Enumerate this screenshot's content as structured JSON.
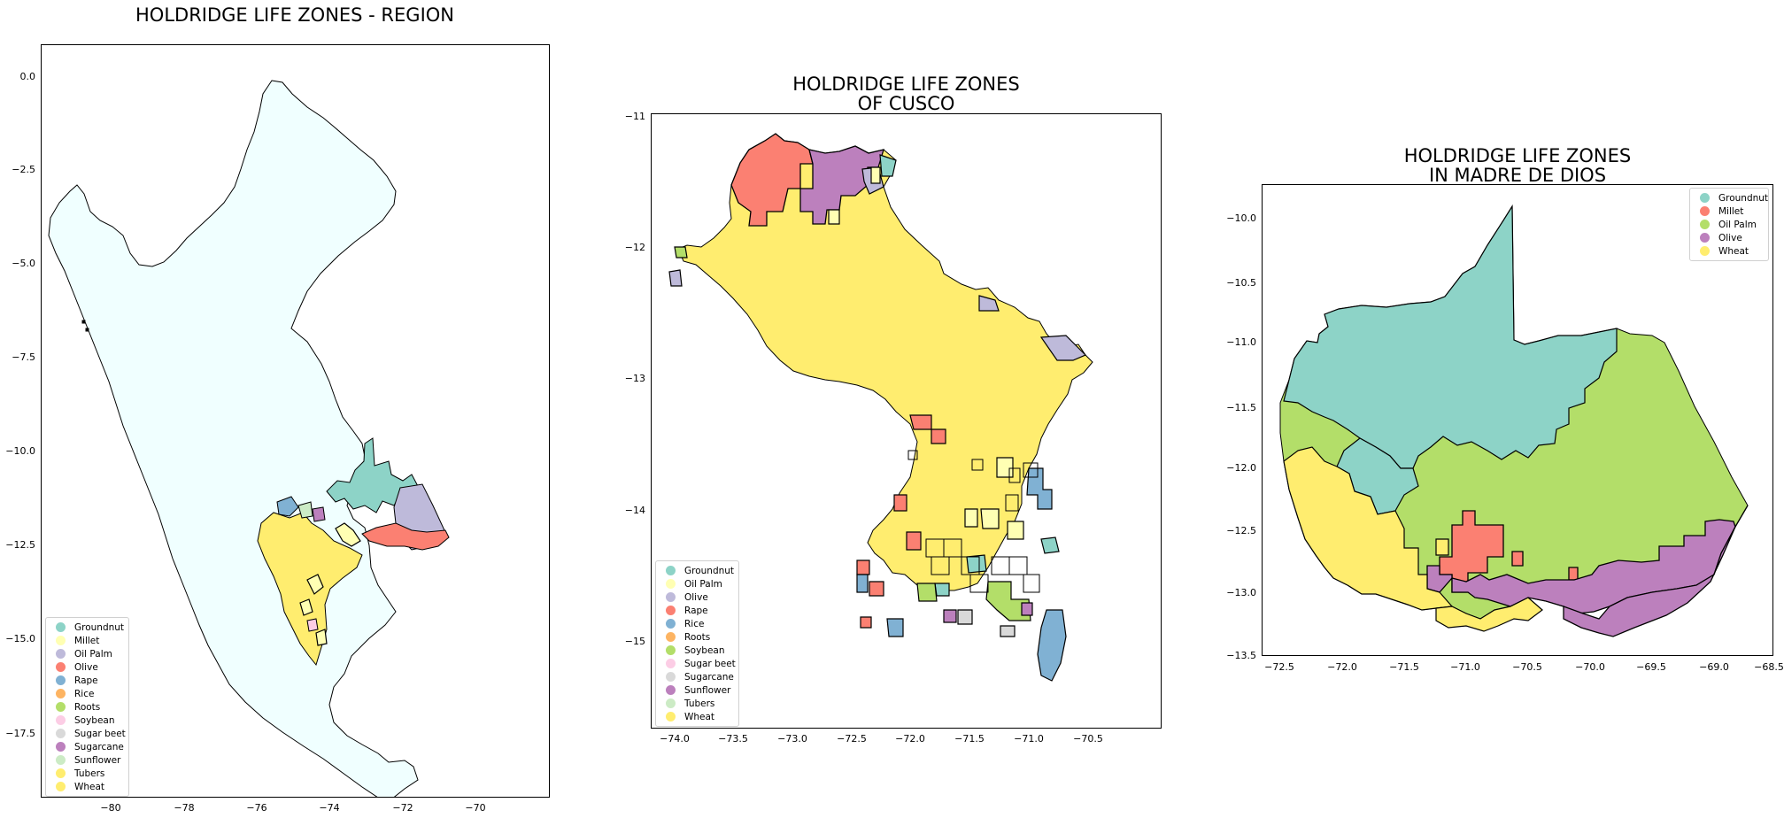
{
  "panels": [
    {
      "id": "region",
      "title": "HOLDRIDGE LIFE ZONES - REGION",
      "y_ticks": [
        "0.0",
        "−2.5",
        "−5.0",
        "−7.5",
        "−10.0",
        "−12.5",
        "−15.0",
        "−17.5"
      ],
      "x_ticks": [
        "−80",
        "−78",
        "−76",
        "−74",
        "−72",
        "−70"
      ],
      "legend": [
        {
          "label": "Groundnut",
          "color": "#8dd3c7"
        },
        {
          "label": "Millet",
          "color": "#ffffb3"
        },
        {
          "label": "Oil Palm",
          "color": "#bebada"
        },
        {
          "label": "Olive",
          "color": "#fb8072"
        },
        {
          "label": "Rape",
          "color": "#80b1d3"
        },
        {
          "label": "Rice",
          "color": "#fdb462"
        },
        {
          "label": "Roots",
          "color": "#b3de69"
        },
        {
          "label": "Soybean",
          "color": "#fccde5"
        },
        {
          "label": "Sugar beet",
          "color": "#d9d9d9"
        },
        {
          "label": "Sugarcane",
          "color": "#bc80bd"
        },
        {
          "label": "Sunflower",
          "color": "#ccebc5"
        },
        {
          "label": "Tubers",
          "color": "#ffed6f"
        },
        {
          "label": "Wheat",
          "color": "#ffed6f"
        }
      ],
      "background_color": "#f0ffff"
    },
    {
      "id": "cusco",
      "title": "HOLDRIDGE LIFE ZONES\nOF CUSCO",
      "y_ticks": [
        "−11",
        "−12",
        "−13",
        "−14",
        "−15"
      ],
      "x_ticks": [
        "−74.0",
        "−73.5",
        "−73.0",
        "−72.5",
        "−72.0",
        "−71.5",
        "−71.0",
        "−70.5"
      ],
      "legend": [
        {
          "label": "Groundnut",
          "color": "#8dd3c7"
        },
        {
          "label": "Oil Palm",
          "color": "#ffffb3"
        },
        {
          "label": "Olive",
          "color": "#bebada"
        },
        {
          "label": "Rape",
          "color": "#fb8072"
        },
        {
          "label": "Rice",
          "color": "#80b1d3"
        },
        {
          "label": "Roots",
          "color": "#fdb462"
        },
        {
          "label": "Soybean",
          "color": "#b3de69"
        },
        {
          "label": "Sugar beet",
          "color": "#fccde5"
        },
        {
          "label": "Sugarcane",
          "color": "#d9d9d9"
        },
        {
          "label": "Sunflower",
          "color": "#bc80bd"
        },
        {
          "label": "Tubers",
          "color": "#ccebc5"
        },
        {
          "label": "Wheat",
          "color": "#ffed6f"
        }
      ]
    },
    {
      "id": "madre",
      "title": "HOLDRIDGE LIFE ZONES\nIN MADRE DE DIOS",
      "y_ticks": [
        "−10.0",
        "−10.5",
        "−11.0",
        "−11.5",
        "−12.0",
        "−12.5",
        "−13.0",
        "−13.5"
      ],
      "x_ticks": [
        "−72.5",
        "−72.0",
        "−71.5",
        "−71.0",
        "−70.5",
        "−70.0",
        "−69.5",
        "−69.0",
        "−68.5"
      ],
      "legend": [
        {
          "label": "Groundnut",
          "color": "#8dd3c7"
        },
        {
          "label": "Millet",
          "color": "#fb8072"
        },
        {
          "label": "Oil Palm",
          "color": "#b3de69"
        },
        {
          "label": "Olive",
          "color": "#bc80bd"
        },
        {
          "label": "Wheat",
          "color": "#ffed6f"
        }
      ]
    }
  ]
}
